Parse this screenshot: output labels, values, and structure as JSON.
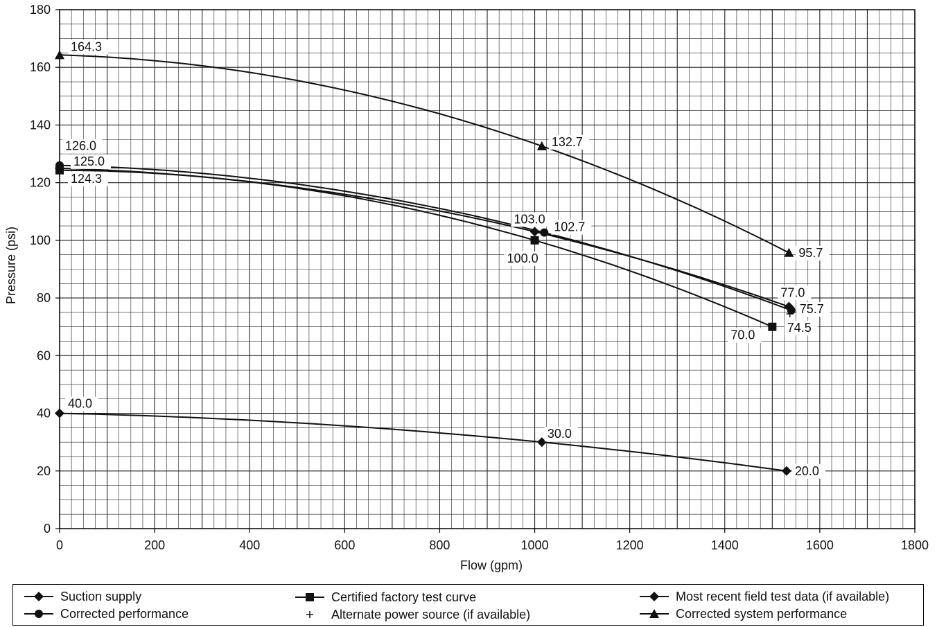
{
  "chart_data": {
    "type": "line",
    "xlabel": "Flow (gpm)",
    "ylabel": "Pressure (psi)",
    "xlim": [
      0,
      1800
    ],
    "ylim": [
      0,
      180
    ],
    "x_ticks": [
      0,
      200,
      400,
      600,
      800,
      1000,
      1200,
      1400,
      1600,
      1800
    ],
    "y_ticks": [
      0,
      20,
      40,
      60,
      80,
      100,
      120,
      140,
      160,
      180
    ],
    "grid": true,
    "legend_position": "bottom",
    "series": [
      {
        "name": "Suction supply",
        "marker": "diamond",
        "points": [
          {
            "x": 0,
            "y": 40.0,
            "label": "40.0"
          },
          {
            "x": 1015,
            "y": 30.0,
            "label": "30.0"
          },
          {
            "x": 1530,
            "y": 20.0,
            "label": "20.0"
          }
        ]
      },
      {
        "name": "Certified factory test curve",
        "marker": "square",
        "points": [
          {
            "x": 0,
            "y": 124.3,
            "label": "124.3"
          },
          {
            "x": 1000,
            "y": 100.0,
            "label": "100.0"
          },
          {
            "x": 1500,
            "y": 70.0,
            "label": "70.0"
          }
        ]
      },
      {
        "name": "Most recent field test data (if available)",
        "marker": "diamond",
        "points": [
          {
            "x": 0,
            "y": 125.0,
            "label": "125.0"
          },
          {
            "x": 1000,
            "y": 103.0,
            "label": "103.0"
          },
          {
            "x": 1535,
            "y": 77.0,
            "label": "77.0"
          }
        ]
      },
      {
        "name": "Corrected performance",
        "marker": "circle",
        "points": [
          {
            "x": 0,
            "y": 126.0,
            "label": "126.0"
          },
          {
            "x": 1020,
            "y": 102.7,
            "label": "102.7"
          },
          {
            "x": 1540,
            "y": 75.7,
            "label": "75.7"
          }
        ]
      },
      {
        "name": "Alternate power source (if available)",
        "marker": "plus",
        "points": [
          {
            "x": 1537,
            "y": 74.5,
            "label": "74.5"
          }
        ]
      },
      {
        "name": "Corrected system performance",
        "marker": "triangle",
        "points": [
          {
            "x": 0,
            "y": 164.3,
            "label": "164.3"
          },
          {
            "x": 1015,
            "y": 132.7,
            "label": "132.7"
          },
          {
            "x": 1535,
            "y": 95.7,
            "label": "95.7"
          }
        ]
      }
    ]
  },
  "legend": {
    "items": [
      {
        "label": "Suction supply",
        "marker": "diamond"
      },
      {
        "label": "Corrected performance",
        "marker": "circle"
      },
      {
        "label": "Certified factory test curve",
        "marker": "square"
      },
      {
        "label": "Alternate power source (if available)",
        "marker": "plus"
      },
      {
        "label": "Most recent field test data (if available)",
        "marker": "diamond"
      },
      {
        "label": "Corrected system performance",
        "marker": "triangle"
      }
    ]
  }
}
